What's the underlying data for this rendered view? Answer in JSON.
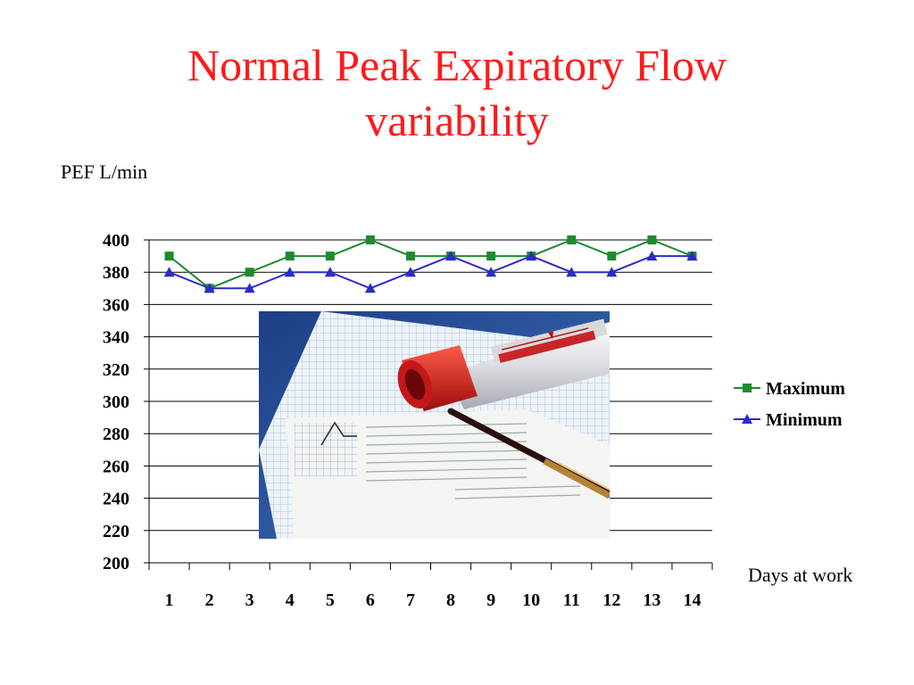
{
  "slide": {
    "title_line1": "Normal Peak Expiratory Flow",
    "title_line2": "variability"
  },
  "chart_data": {
    "type": "line",
    "ylabel": "PEF L/min",
    "xlabel": "Days at work",
    "categories": [
      "1",
      "2",
      "3",
      "4",
      "5",
      "6",
      "7",
      "8",
      "9",
      "10",
      "11",
      "12",
      "13",
      "14"
    ],
    "ylim": [
      200,
      400
    ],
    "yticks": [
      200,
      220,
      240,
      260,
      280,
      300,
      320,
      340,
      360,
      380,
      400
    ],
    "grid": true,
    "legend_position": "right",
    "series": [
      {
        "name": "Maximum",
        "marker": "square",
        "color": "#1f8a2e",
        "values": [
          390,
          370,
          380,
          390,
          390,
          400,
          390,
          390,
          390,
          390,
          400,
          390,
          400,
          390
        ]
      },
      {
        "name": "Minimum",
        "marker": "triangle",
        "color": "#2b2bc8",
        "values": [
          380,
          370,
          370,
          380,
          380,
          370,
          380,
          390,
          380,
          390,
          380,
          380,
          390,
          390
        ]
      }
    ]
  },
  "photo": {
    "description_icon": "peak-flow-meter-photo",
    "meter_body_color": "#e8e8ea",
    "meter_cap_color": "#d61a1a",
    "paper_color": "#dfe8f2"
  }
}
